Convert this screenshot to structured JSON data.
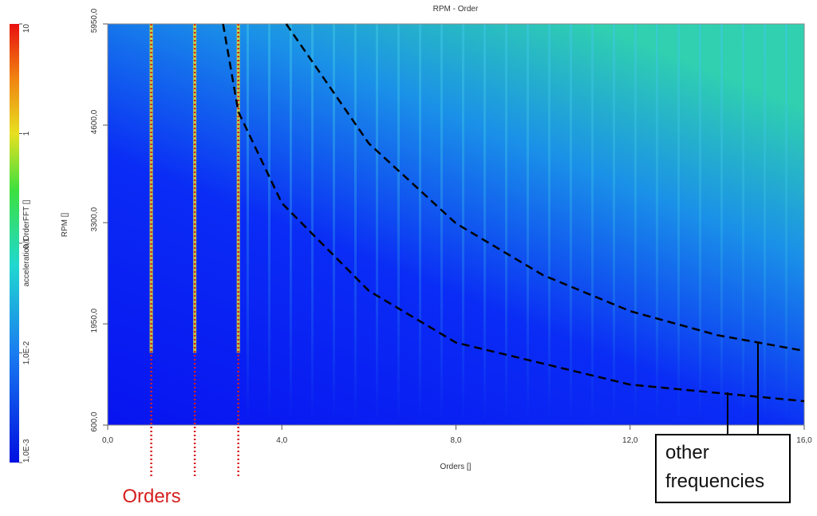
{
  "chart_data": {
    "type": "heatmap",
    "title": "RPM - Order",
    "x_label": "Orders []",
    "y_label": "RPM []",
    "xlim": [
      0,
      16
    ],
    "xticks": [
      {
        "value": 0,
        "label": "0,0"
      },
      {
        "value": 4,
        "label": "4,0"
      },
      {
        "value": 8,
        "label": "8,0"
      },
      {
        "value": 12,
        "label": "12,0"
      },
      {
        "value": 16,
        "label": "16,0"
      }
    ],
    "ylim": [
      600,
      5950
    ],
    "yticks": [
      {
        "value": 600,
        "label": "600,0"
      },
      {
        "value": 1950,
        "label": "1950,0"
      },
      {
        "value": 3300,
        "label": "3300,0"
      },
      {
        "value": 4600,
        "label": "4600,0"
      },
      {
        "value": 5950,
        "label": "5950,0"
      }
    ],
    "colorbar": {
      "label": "acceleration/OrderFFT []",
      "log": true,
      "lim": [
        0.001,
        10
      ],
      "ticks": [
        {
          "value": 0.001,
          "label": "1,0E-3"
        },
        {
          "value": 0.01,
          "label": "1,0E-2"
        },
        {
          "value": 0.1,
          "label": "0,1"
        },
        1,
        10
      ]
    },
    "order_lines": {
      "x": [
        1,
        2,
        3
      ],
      "color": "#d62020"
    },
    "curves": [
      {
        "color": "#000000",
        "x": [
          4.1,
          6,
          8,
          10,
          12,
          14,
          16
        ],
        "y": [
          5950,
          4355,
          3290,
          2600,
          2120,
          1800,
          1590
        ]
      },
      {
        "color": "#000000",
        "x": [
          2.65,
          3,
          4,
          6,
          8,
          12,
          16
        ],
        "y": [
          5950,
          4780,
          3560,
          2390,
          1700,
          1140,
          919
        ]
      }
    ],
    "annotations": {
      "orders": "Orders",
      "other": "other frequencies"
    }
  }
}
